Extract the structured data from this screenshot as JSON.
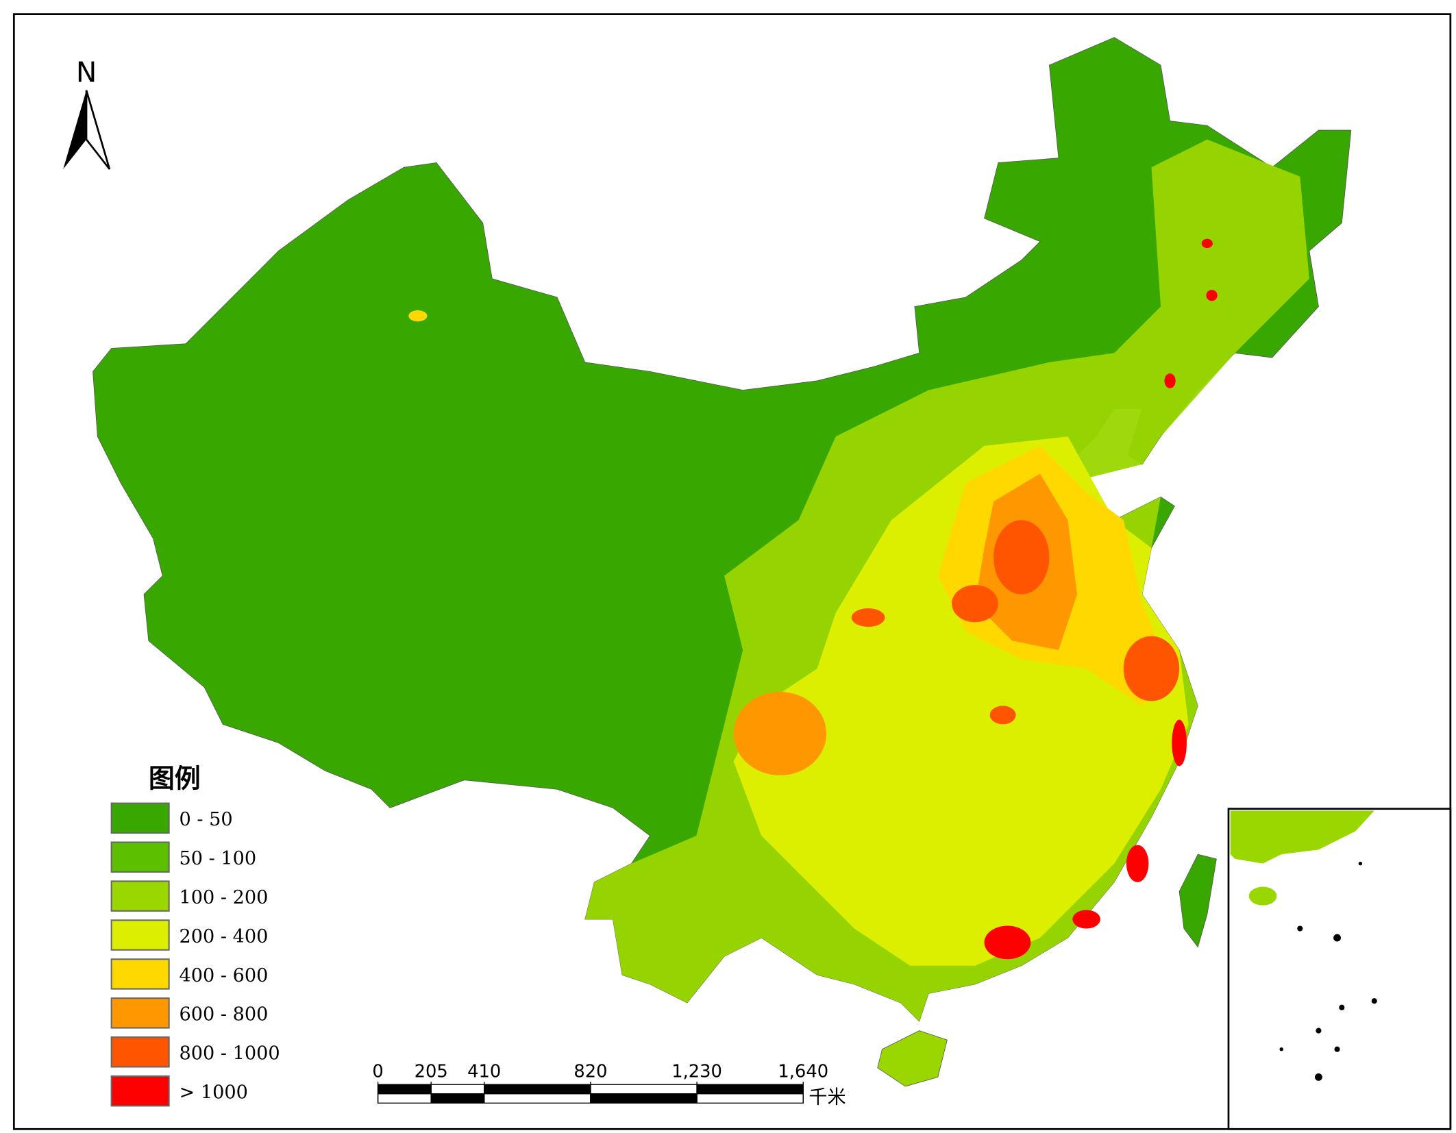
{
  "north_arrow": {
    "label": "N"
  },
  "legend": {
    "title": "图例",
    "items": [
      {
        "label": "0 - 50",
        "color": "#38a800"
      },
      {
        "label": "50 - 100",
        "color": "#5cbf00"
      },
      {
        "label": "100 - 200",
        "color": "#9ad600"
      },
      {
        "label": "200 - 400",
        "color": "#dcef00"
      },
      {
        "label": "400 - 600",
        "color": "#ffd800"
      },
      {
        "label": "600 - 800",
        "color": "#ff9800"
      },
      {
        "label": "800 - 1000",
        "color": "#ff5500"
      },
      {
        "label": "> 1000",
        "color": "#ff0000"
      }
    ]
  },
  "scale_bar": {
    "unit": "千米",
    "ticks": [
      0,
      205,
      410,
      820,
      {
        "value": 1230,
        "label": "1,230"
      },
      {
        "value": 1640,
        "label": "1,640"
      }
    ]
  }
}
